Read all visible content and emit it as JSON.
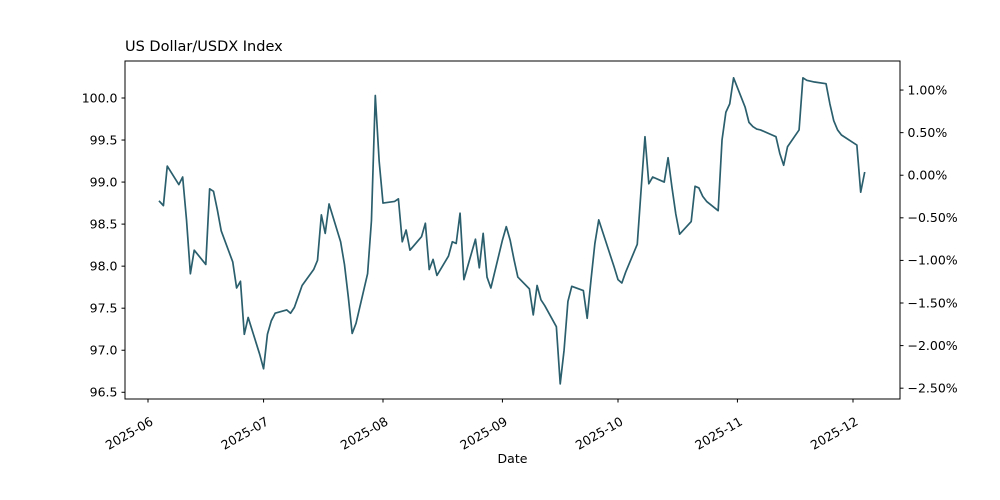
{
  "figure": {
    "background": "#ffffff"
  },
  "chart_data": {
    "type": "line",
    "title": "US Dollar/USDX Index",
    "xlabel": "Date",
    "ylabel": "",
    "grid": false,
    "legend": null,
    "line_color": "#2b5f6d",
    "axis_color": "#000000",
    "x_base_date": "2025-06-01",
    "xlim_days": [
      -5.97,
      195.2
    ],
    "ylim": [
      96.42,
      100.44
    ],
    "right_ylim": [
      -2.627,
      1.341
    ],
    "y_ticks_left": [
      96.5,
      97.0,
      97.5,
      98.0,
      98.5,
      99.0,
      99.5,
      100.0
    ],
    "y_tick_labels_left": [
      "96.5",
      "97.0",
      "97.5",
      "98.0",
      "98.5",
      "99.0",
      "99.5",
      "100.0"
    ],
    "y_ticks_right": [
      1.0,
      0.5,
      0.0,
      -0.5,
      -1.0,
      -1.5,
      -2.0,
      -2.5
    ],
    "y_tick_labels_right": [
      "1.00%",
      "0.50%",
      "0.00%",
      "−0.50%",
      "−1.00%",
      "−1.50%",
      "−2.00%",
      "−2.50%"
    ],
    "x_tick_dates": [
      "2025-06-01",
      "2025-07-01",
      "2025-08-01",
      "2025-09-01",
      "2025-10-01",
      "2025-11-01",
      "2025-12-01"
    ],
    "x_tick_labels": [
      "2025-06",
      "2025-07",
      "2025-08",
      "2025-09",
      "2025-10",
      "2025-11",
      "2025-12"
    ],
    "series": [
      {
        "name": "USDX",
        "points": [
          [
            "2025-06-04",
            98.77
          ],
          [
            "2025-06-05",
            98.72
          ],
          [
            "2025-06-06",
            99.19
          ],
          [
            "2025-06-09",
            98.97
          ],
          [
            "2025-06-10",
            99.06
          ],
          [
            "2025-06-11",
            98.55
          ],
          [
            "2025-06-12",
            97.91
          ],
          [
            "2025-06-13",
            98.19
          ],
          [
            "2025-06-16",
            98.02
          ],
          [
            "2025-06-17",
            98.92
          ],
          [
            "2025-06-18",
            98.89
          ],
          [
            "2025-06-19",
            98.67
          ],
          [
            "2025-06-20",
            98.42
          ],
          [
            "2025-06-23",
            98.05
          ],
          [
            "2025-06-24",
            97.74
          ],
          [
            "2025-06-25",
            97.82
          ],
          [
            "2025-06-26",
            97.19
          ],
          [
            "2025-06-27",
            97.39
          ],
          [
            "2025-06-30",
            96.95
          ],
          [
            "2025-07-01",
            96.78
          ],
          [
            "2025-07-02",
            97.19
          ],
          [
            "2025-07-03",
            97.35
          ],
          [
            "2025-07-04",
            97.44
          ],
          [
            "2025-07-07",
            97.48
          ],
          [
            "2025-07-08",
            97.44
          ],
          [
            "2025-07-09",
            97.51
          ],
          [
            "2025-07-10",
            97.64
          ],
          [
            "2025-07-11",
            97.77
          ],
          [
            "2025-07-14",
            97.96
          ],
          [
            "2025-07-15",
            98.07
          ],
          [
            "2025-07-16",
            98.61
          ],
          [
            "2025-07-17",
            98.39
          ],
          [
            "2025-07-18",
            98.74
          ],
          [
            "2025-07-21",
            98.29
          ],
          [
            "2025-07-22",
            98.02
          ],
          [
            "2025-07-23",
            97.63
          ],
          [
            "2025-07-24",
            97.2
          ],
          [
            "2025-07-25",
            97.32
          ],
          [
            "2025-07-28",
            97.91
          ],
          [
            "2025-07-29",
            98.54
          ],
          [
            "2025-07-30",
            100.03
          ],
          [
            "2025-07-31",
            99.25
          ],
          [
            "2025-08-01",
            98.75
          ],
          [
            "2025-08-04",
            98.77
          ],
          [
            "2025-08-05",
            98.8
          ],
          [
            "2025-08-06",
            98.29
          ],
          [
            "2025-08-07",
            98.43
          ],
          [
            "2025-08-08",
            98.19
          ],
          [
            "2025-08-11",
            98.35
          ],
          [
            "2025-08-12",
            98.51
          ],
          [
            "2025-08-13",
            97.96
          ],
          [
            "2025-08-14",
            98.08
          ],
          [
            "2025-08-15",
            97.89
          ],
          [
            "2025-08-18",
            98.12
          ],
          [
            "2025-08-19",
            98.29
          ],
          [
            "2025-08-20",
            98.27
          ],
          [
            "2025-08-21",
            98.63
          ],
          [
            "2025-08-22",
            97.84
          ],
          [
            "2025-08-25",
            98.32
          ],
          [
            "2025-08-26",
            97.98
          ],
          [
            "2025-08-27",
            98.39
          ],
          [
            "2025-08-28",
            97.87
          ],
          [
            "2025-08-29",
            97.74
          ],
          [
            "2025-09-01",
            98.31
          ],
          [
            "2025-09-02",
            98.47
          ],
          [
            "2025-09-03",
            98.31
          ],
          [
            "2025-09-04",
            98.08
          ],
          [
            "2025-09-05",
            97.87
          ],
          [
            "2025-09-08",
            97.73
          ],
          [
            "2025-09-09",
            97.42
          ],
          [
            "2025-09-10",
            97.77
          ],
          [
            "2025-09-11",
            97.6
          ],
          [
            "2025-09-12",
            97.53
          ],
          [
            "2025-09-15",
            97.28
          ],
          [
            "2025-09-16",
            96.6
          ],
          [
            "2025-09-17",
            97.0
          ],
          [
            "2025-09-18",
            97.58
          ],
          [
            "2025-09-19",
            97.76
          ],
          [
            "2025-09-22",
            97.71
          ],
          [
            "2025-09-23",
            97.38
          ],
          [
            "2025-09-24",
            97.84
          ],
          [
            "2025-09-25",
            98.27
          ],
          [
            "2025-09-26",
            98.55
          ],
          [
            "2025-09-29",
            98.13
          ],
          [
            "2025-09-30",
            97.99
          ],
          [
            "2025-10-01",
            97.84
          ],
          [
            "2025-10-02",
            97.8
          ],
          [
            "2025-10-03",
            97.93
          ],
          [
            "2025-10-06",
            98.26
          ],
          [
            "2025-10-07",
            98.91
          ],
          [
            "2025-10-08",
            99.54
          ],
          [
            "2025-10-09",
            98.98
          ],
          [
            "2025-10-10",
            99.06
          ],
          [
            "2025-10-13",
            99.0
          ],
          [
            "2025-10-14",
            99.29
          ],
          [
            "2025-10-15",
            98.94
          ],
          [
            "2025-10-16",
            98.62
          ],
          [
            "2025-10-17",
            98.38
          ],
          [
            "2025-10-20",
            98.53
          ],
          [
            "2025-10-21",
            98.95
          ],
          [
            "2025-10-22",
            98.93
          ],
          [
            "2025-10-23",
            98.83
          ],
          [
            "2025-10-24",
            98.77
          ],
          [
            "2025-10-27",
            98.66
          ],
          [
            "2025-10-28",
            99.5
          ],
          [
            "2025-10-29",
            99.83
          ],
          [
            "2025-10-30",
            99.93
          ],
          [
            "2025-10-31",
            100.24
          ],
          [
            "2025-11-03",
            99.89
          ],
          [
            "2025-11-04",
            99.71
          ],
          [
            "2025-11-05",
            99.66
          ],
          [
            "2025-11-06",
            99.63
          ],
          [
            "2025-11-07",
            99.62
          ],
          [
            "2025-11-10",
            99.56
          ],
          [
            "2025-11-11",
            99.54
          ],
          [
            "2025-11-12",
            99.34
          ],
          [
            "2025-11-13",
            99.2
          ],
          [
            "2025-11-14",
            99.42
          ],
          [
            "2025-11-17",
            99.62
          ],
          [
            "2025-11-18",
            100.24
          ],
          [
            "2025-11-19",
            100.21
          ],
          [
            "2025-11-20",
            100.2
          ],
          [
            "2025-11-21",
            100.19
          ],
          [
            "2025-11-24",
            100.17
          ],
          [
            "2025-11-25",
            99.93
          ],
          [
            "2025-11-26",
            99.73
          ],
          [
            "2025-11-27",
            99.62
          ],
          [
            "2025-11-28",
            99.56
          ],
          [
            "2025-12-01",
            99.47
          ],
          [
            "2025-12-02",
            99.44
          ],
          [
            "2025-12-03",
            98.88
          ],
          [
            "2025-12-04",
            99.11
          ]
        ]
      }
    ]
  }
}
